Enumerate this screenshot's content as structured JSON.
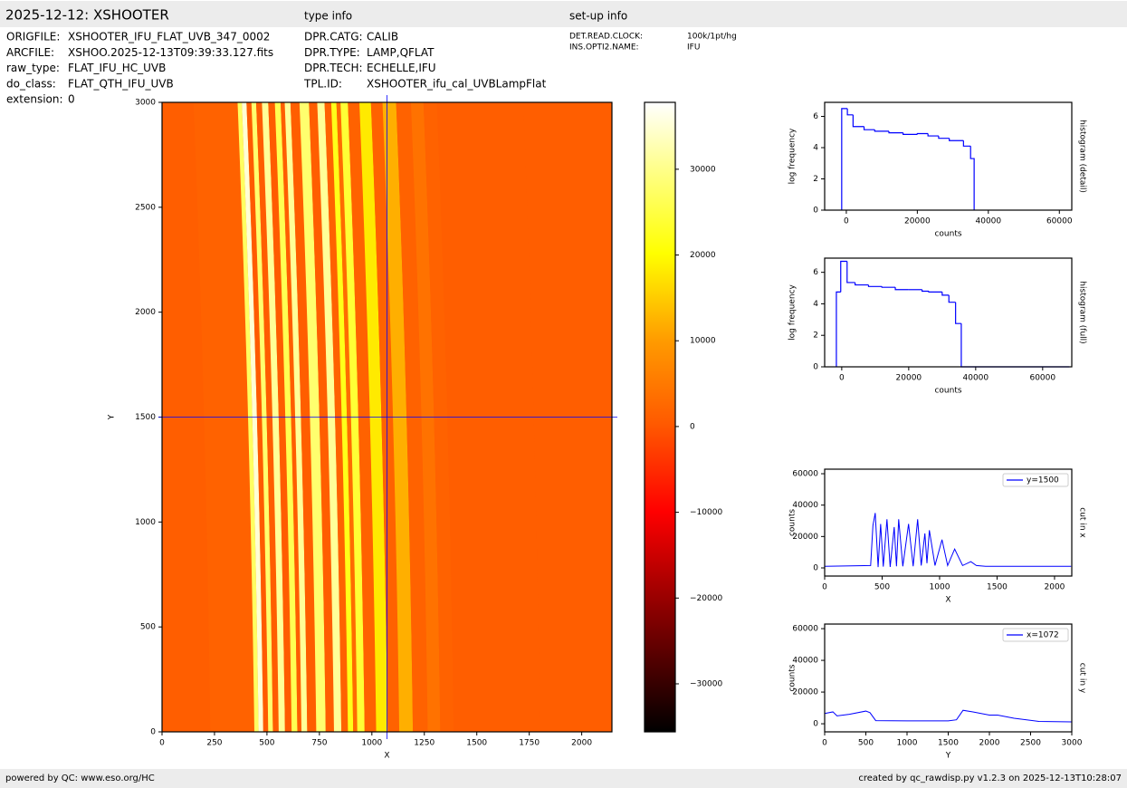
{
  "header": {
    "title": "2025-12-12: XSHOOTER",
    "type_info_title": "type info",
    "setup_title": "set-up info"
  },
  "file_info": [
    {
      "label": "ORIGFILE:",
      "value": "XSHOOTER_IFU_FLAT_UVB_347_0002"
    },
    {
      "label": "ARCFILE:",
      "value": "XSHOO.2025-12-13T09:39:33.127.fits"
    },
    {
      "label": "raw_type:",
      "value": "FLAT_IFU_HC_UVB"
    },
    {
      "label": "do_class:",
      "value": "FLAT_QTH_IFU_UVB"
    },
    {
      "label": "extension:",
      "value": "0"
    }
  ],
  "type_info": [
    {
      "label": "DPR.CATG:",
      "value": "CALIB"
    },
    {
      "label": "DPR.TYPE:",
      "value": "LAMP,QFLAT"
    },
    {
      "label": "DPR.TECH:",
      "value": "ECHELLE,IFU"
    },
    {
      "label": "TPL.ID:",
      "value": "XSHOOTER_ifu_cal_UVBLampFlat"
    }
  ],
  "setup_info": [
    {
      "label": "DET.READ.CLOCK:",
      "value": "100k/1pt/hg"
    },
    {
      "label": "INS.OPTI2.NAME:",
      "value": "IFU"
    }
  ],
  "footer": {
    "left": "powered by QC: www.eso.org/HC",
    "right": "created by qc_rawdisp.py v1.2.3 on 2025-12-13T10:28:07"
  },
  "chart_data": [
    {
      "type": "image",
      "xlabel": "X",
      "ylabel": "Y",
      "xlim": [
        0,
        2144
      ],
      "ylim": [
        0,
        3000
      ],
      "xticks": [
        0,
        250,
        500,
        750,
        1000,
        1250,
        1500,
        1750,
        2000
      ],
      "yticks": [
        0,
        500,
        1000,
        1500,
        2000,
        2500,
        3000
      ],
      "crosshair": {
        "x": 1072,
        "y": 1500
      },
      "crosshair_color": "#0000ff",
      "colormap": "hot",
      "colorbar": {
        "lim": [
          -35600,
          37800
        ],
        "ticks": [
          {
            "value": -30000,
            "label": "−30000"
          },
          {
            "value": -20000,
            "label": "−20000"
          },
          {
            "value": -10000,
            "label": "−10000"
          },
          0,
          10000,
          20000,
          30000
        ]
      }
    },
    {
      "type": "histogram",
      "title": "histogram (detail)",
      "xlabel": "counts",
      "ylabel": "log frequency",
      "xlim": [
        -6100,
        63500
      ],
      "ylim": [
        0,
        6.9
      ],
      "xticks": [
        0,
        20000,
        40000,
        60000
      ],
      "yticks": [
        0,
        2,
        4,
        6
      ],
      "bins": [
        -1300,
        300,
        1900,
        5000,
        8000,
        12000,
        16000,
        20000,
        23000,
        26000,
        29000,
        33000,
        35000,
        36000
      ],
      "values": [
        6.5,
        6.1,
        5.35,
        5.15,
        5.05,
        4.95,
        4.85,
        4.9,
        4.75,
        4.6,
        4.45,
        4.1,
        3.3
      ],
      "color": "#0000ff"
    },
    {
      "type": "histogram",
      "title": "histogram (full)",
      "xlabel": "counts",
      "ylabel": "log frequency",
      "xlim": [
        -5100,
        68700
      ],
      "ylim": [
        0,
        6.9
      ],
      "xticks": [
        0,
        20000,
        40000,
        60000
      ],
      "yticks": [
        0,
        2,
        4,
        6
      ],
      "bins": [
        -1600,
        -300,
        1600,
        4000,
        8000,
        12000,
        16000,
        20000,
        24000,
        26000,
        30000,
        32000,
        34000,
        35700,
        68000
      ],
      "values": [
        4.75,
        6.7,
        5.35,
        5.2,
        5.1,
        5.05,
        4.9,
        4.9,
        4.8,
        4.75,
        4.55,
        4.1,
        2.75,
        0
      ],
      "color": "#0000ff"
    },
    {
      "type": "line",
      "title": "cut in x",
      "xlabel": "X",
      "ylabel": "counts",
      "xlim": [
        0,
        2150
      ],
      "ylim": [
        -5200,
        62900
      ],
      "xticks": [
        0,
        500,
        1000,
        1500,
        2000
      ],
      "yticks": [
        0,
        20000,
        40000,
        60000
      ],
      "legend": "upper right",
      "x": [
        0,
        400,
        420,
        440,
        465,
        487,
        510,
        542,
        570,
        605,
        625,
        644,
        680,
        730,
        770,
        809,
        840,
        872,
        890,
        911,
        960,
        1021,
        1070,
        1131,
        1200,
        1272,
        1320,
        1400,
        2144
      ],
      "series": [
        {
          "name": "y=1500",
          "color": "#0000ff",
          "values": [
            1000,
            1500,
            27000,
            35000,
            500,
            28000,
            800,
            31000,
            600,
            26000,
            1000,
            31000,
            1000,
            28000,
            1000,
            31000,
            1500,
            22000,
            3000,
            24000,
            1500,
            18000,
            1500,
            12000,
            1500,
            4000,
            1500,
            1000,
            1000
          ]
        }
      ]
    },
    {
      "type": "line",
      "title": "cut in y",
      "xlabel": "Y",
      "ylabel": "counts",
      "xlim": [
        0,
        3000
      ],
      "ylim": [
        -5100,
        62900
      ],
      "xticks": [
        0,
        500,
        1000,
        1500,
        2000,
        2500,
        3000
      ],
      "yticks": [
        0,
        20000,
        40000,
        60000
      ],
      "legend": "upper right",
      "x": [
        0,
        100,
        150,
        300,
        500,
        550,
        620,
        1000,
        1500,
        1600,
        1680,
        1800,
        2000,
        2100,
        2300,
        2600,
        3000
      ],
      "series": [
        {
          "name": "x=1072",
          "color": "#0000ff",
          "values": [
            6500,
            7500,
            5000,
            6000,
            8000,
            7000,
            2000,
            1800,
            1800,
            2500,
            8500,
            7500,
            5500,
            5500,
            3500,
            1500,
            1200
          ]
        }
      ]
    }
  ]
}
